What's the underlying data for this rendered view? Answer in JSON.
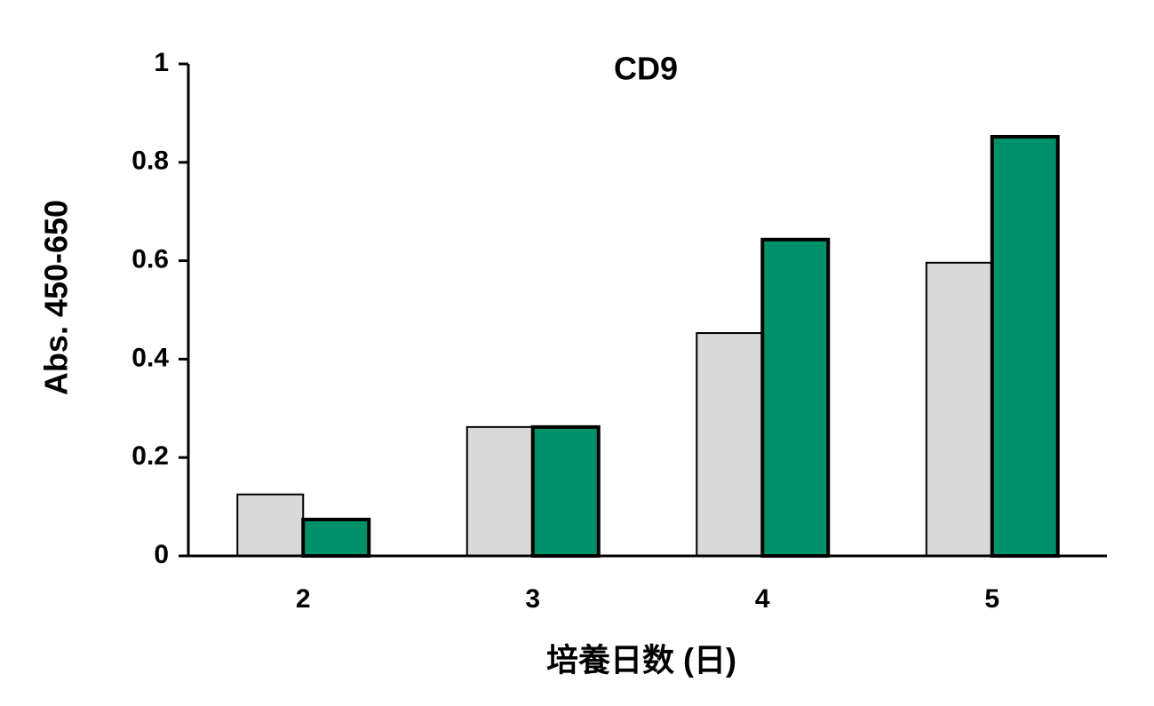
{
  "chart_data": {
    "type": "bar",
    "title": "CD9",
    "y_label": "Abs. 450-650",
    "x_label": "培養日数 (日)",
    "categories": [
      "2",
      "3",
      "4",
      "5"
    ],
    "series": [
      {
        "color": "#d9d9d9",
        "values": [
          0.125,
          0.262,
          0.453,
          0.596
        ]
      },
      {
        "color": "#00916b",
        "values": [
          0.074,
          0.262,
          0.643,
          0.852
        ]
      }
    ],
    "ylim": [
      0,
      1
    ],
    "yticks": [
      0,
      0.2,
      0.4,
      0.6,
      0.8,
      1
    ],
    "grid": false
  }
}
